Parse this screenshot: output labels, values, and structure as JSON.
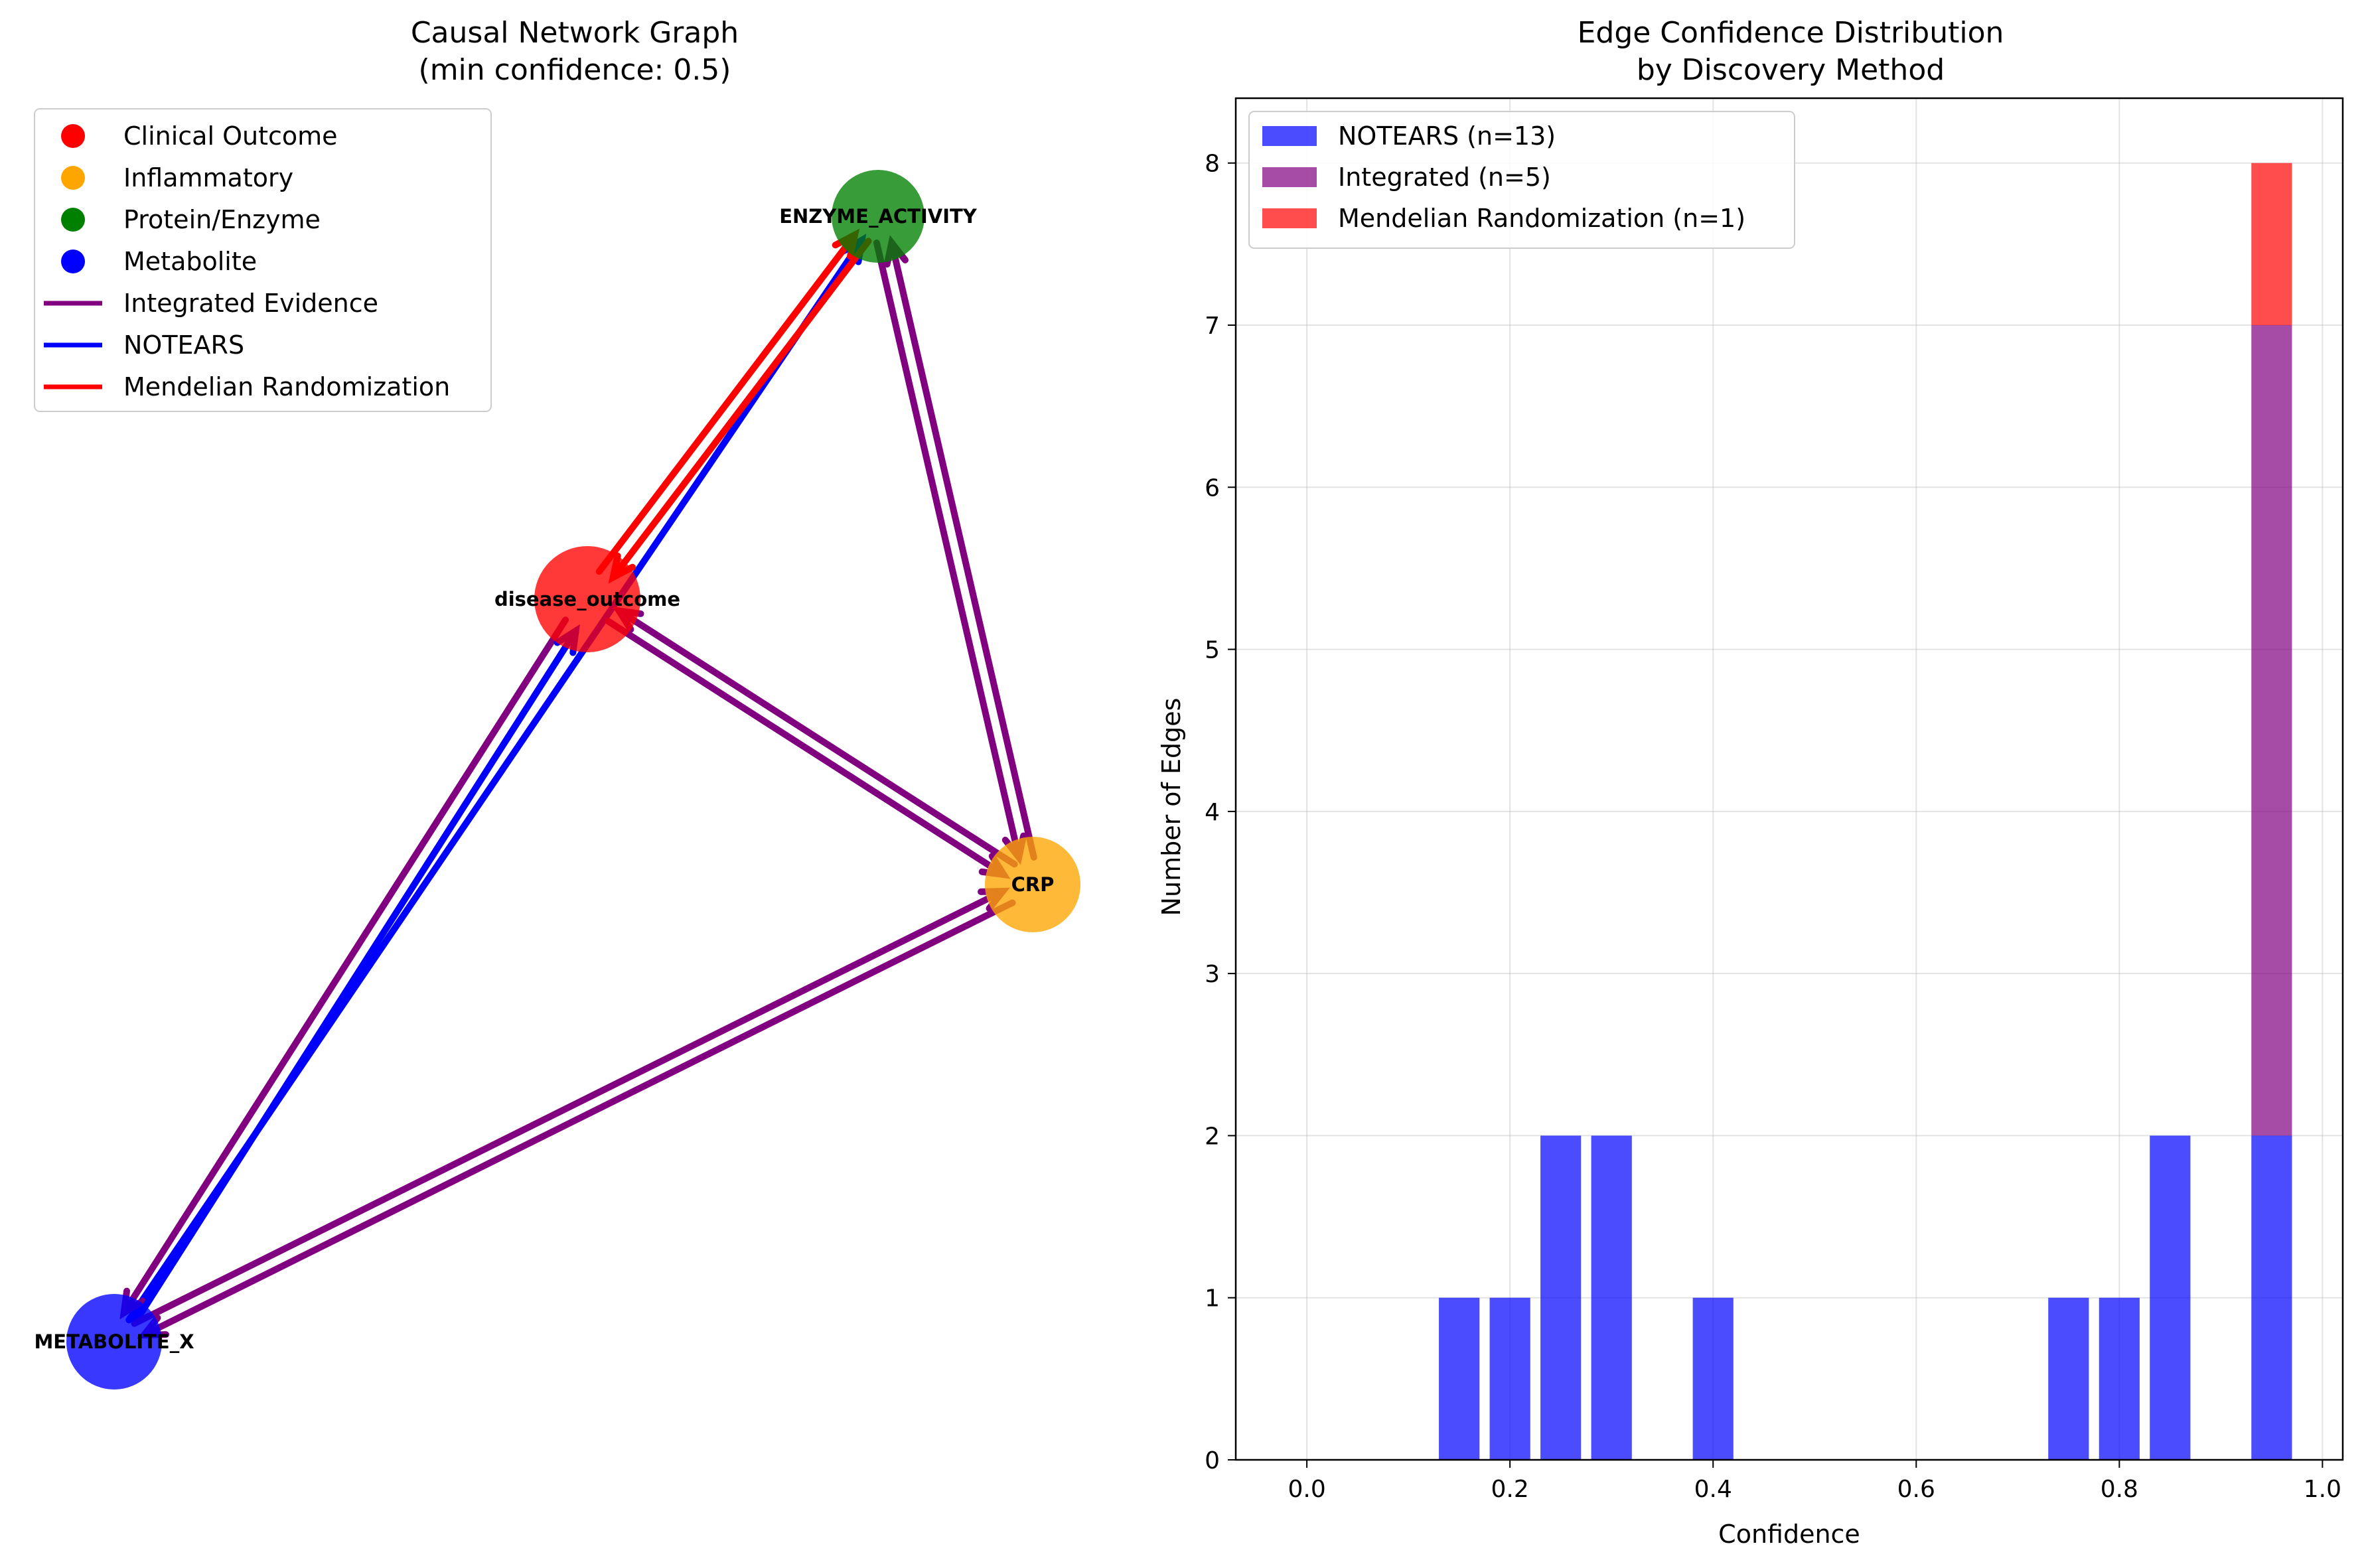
{
  "chart_data": [
    {
      "type": "network",
      "title": "Causal Network Graph",
      "subtitle": "(min confidence: 0.5)",
      "nodes": [
        {
          "id": "ENZYME_ACTIVITY",
          "label": "ENZYME_ACTIVITY",
          "category": "Protein/Enzyme",
          "color": "#008000"
        },
        {
          "id": "disease_outcome",
          "label": "disease_outcome",
          "category": "Clinical Outcome",
          "color": "#ff0000"
        },
        {
          "id": "CRP",
          "label": "CRP",
          "category": "Inflammatory",
          "color": "#ffa500"
        },
        {
          "id": "METABOLITE_X",
          "label": "METABOLITE_X",
          "category": "Metabolite",
          "color": "#0000ff"
        }
      ],
      "edges": [
        {
          "source": "METABOLITE_X",
          "target": "ENZYME_ACTIVITY",
          "method": "NOTEARS"
        },
        {
          "source": "disease_outcome",
          "target": "METABOLITE_X",
          "method": "Integrated Evidence"
        },
        {
          "source": "METABOLITE_X",
          "target": "disease_outcome",
          "method": "NOTEARS"
        },
        {
          "source": "ENZYME_ACTIVITY",
          "target": "disease_outcome",
          "method": "Mendelian Randomization"
        },
        {
          "source": "disease_outcome",
          "target": "ENZYME_ACTIVITY",
          "method": "Mendelian Randomization"
        },
        {
          "source": "disease_outcome",
          "target": "CRP",
          "method": "Integrated Evidence"
        },
        {
          "source": "CRP",
          "target": "disease_outcome",
          "method": "Integrated Evidence"
        },
        {
          "source": "ENZYME_ACTIVITY",
          "target": "CRP",
          "method": "Integrated Evidence"
        },
        {
          "source": "CRP",
          "target": "ENZYME_ACTIVITY",
          "method": "Integrated Evidence"
        },
        {
          "source": "CRP",
          "target": "METABOLITE_X",
          "method": "Integrated Evidence"
        },
        {
          "source": "METABOLITE_X",
          "target": "CRP",
          "method": "Integrated Evidence"
        }
      ],
      "legend": [
        {
          "kind": "marker",
          "label": "Clinical Outcome",
          "color": "#ff0000"
        },
        {
          "kind": "marker",
          "label": "Inflammatory",
          "color": "#ffa500"
        },
        {
          "kind": "marker",
          "label": "Protein/Enzyme",
          "color": "#008000"
        },
        {
          "kind": "marker",
          "label": "Metabolite",
          "color": "#0000ff"
        },
        {
          "kind": "line",
          "label": "Integrated Evidence",
          "color": "#800080"
        },
        {
          "kind": "line",
          "label": "NOTEARS",
          "color": "#0000ff"
        },
        {
          "kind": "line",
          "label": "Mendelian Randomization",
          "color": "#ff0000"
        }
      ],
      "legend_position": "upper-left"
    },
    {
      "type": "bar",
      "stacked": true,
      "title": "Edge Confidence Distribution",
      "subtitle": "by Discovery Method",
      "xlabel": "Confidence",
      "ylabel": "Number of Edges",
      "xlim": [
        -0.07,
        1.02
      ],
      "ylim": [
        0,
        8.4
      ],
      "x_ticks": [
        0.0,
        0.2,
        0.4,
        0.6,
        0.8,
        1.0
      ],
      "x_tick_labels": [
        "0.0",
        "0.2",
        "0.4",
        "0.6",
        "0.8",
        "1.0"
      ],
      "y_ticks": [
        0,
        1,
        2,
        3,
        4,
        5,
        6,
        7,
        8
      ],
      "y_tick_labels": [
        "0",
        "1",
        "2",
        "3",
        "4",
        "5",
        "6",
        "7",
        "8"
      ],
      "grid": true,
      "legend_position": "upper-left",
      "bin_width": 0.04,
      "series": [
        {
          "name": "NOTEARS (n=13)",
          "color": "#0000ff",
          "bins": [
            {
              "x": 0.15,
              "value": 1
            },
            {
              "x": 0.2,
              "value": 1
            },
            {
              "x": 0.25,
              "value": 2
            },
            {
              "x": 0.3,
              "value": 2
            },
            {
              "x": 0.4,
              "value": 1
            },
            {
              "x": 0.75,
              "value": 1
            },
            {
              "x": 0.8,
              "value": 1
            },
            {
              "x": 0.85,
              "value": 2
            },
            {
              "x": 0.95,
              "value": 2
            }
          ]
        },
        {
          "name": "Integrated (n=5)",
          "color": "#800080",
          "bins": [
            {
              "x": 0.95,
              "value": 5
            }
          ]
        },
        {
          "name": "Mendelian Randomization (n=1)",
          "color": "#ff0000",
          "bins": [
            {
              "x": 0.95,
              "value": 1
            }
          ]
        }
      ]
    }
  ]
}
